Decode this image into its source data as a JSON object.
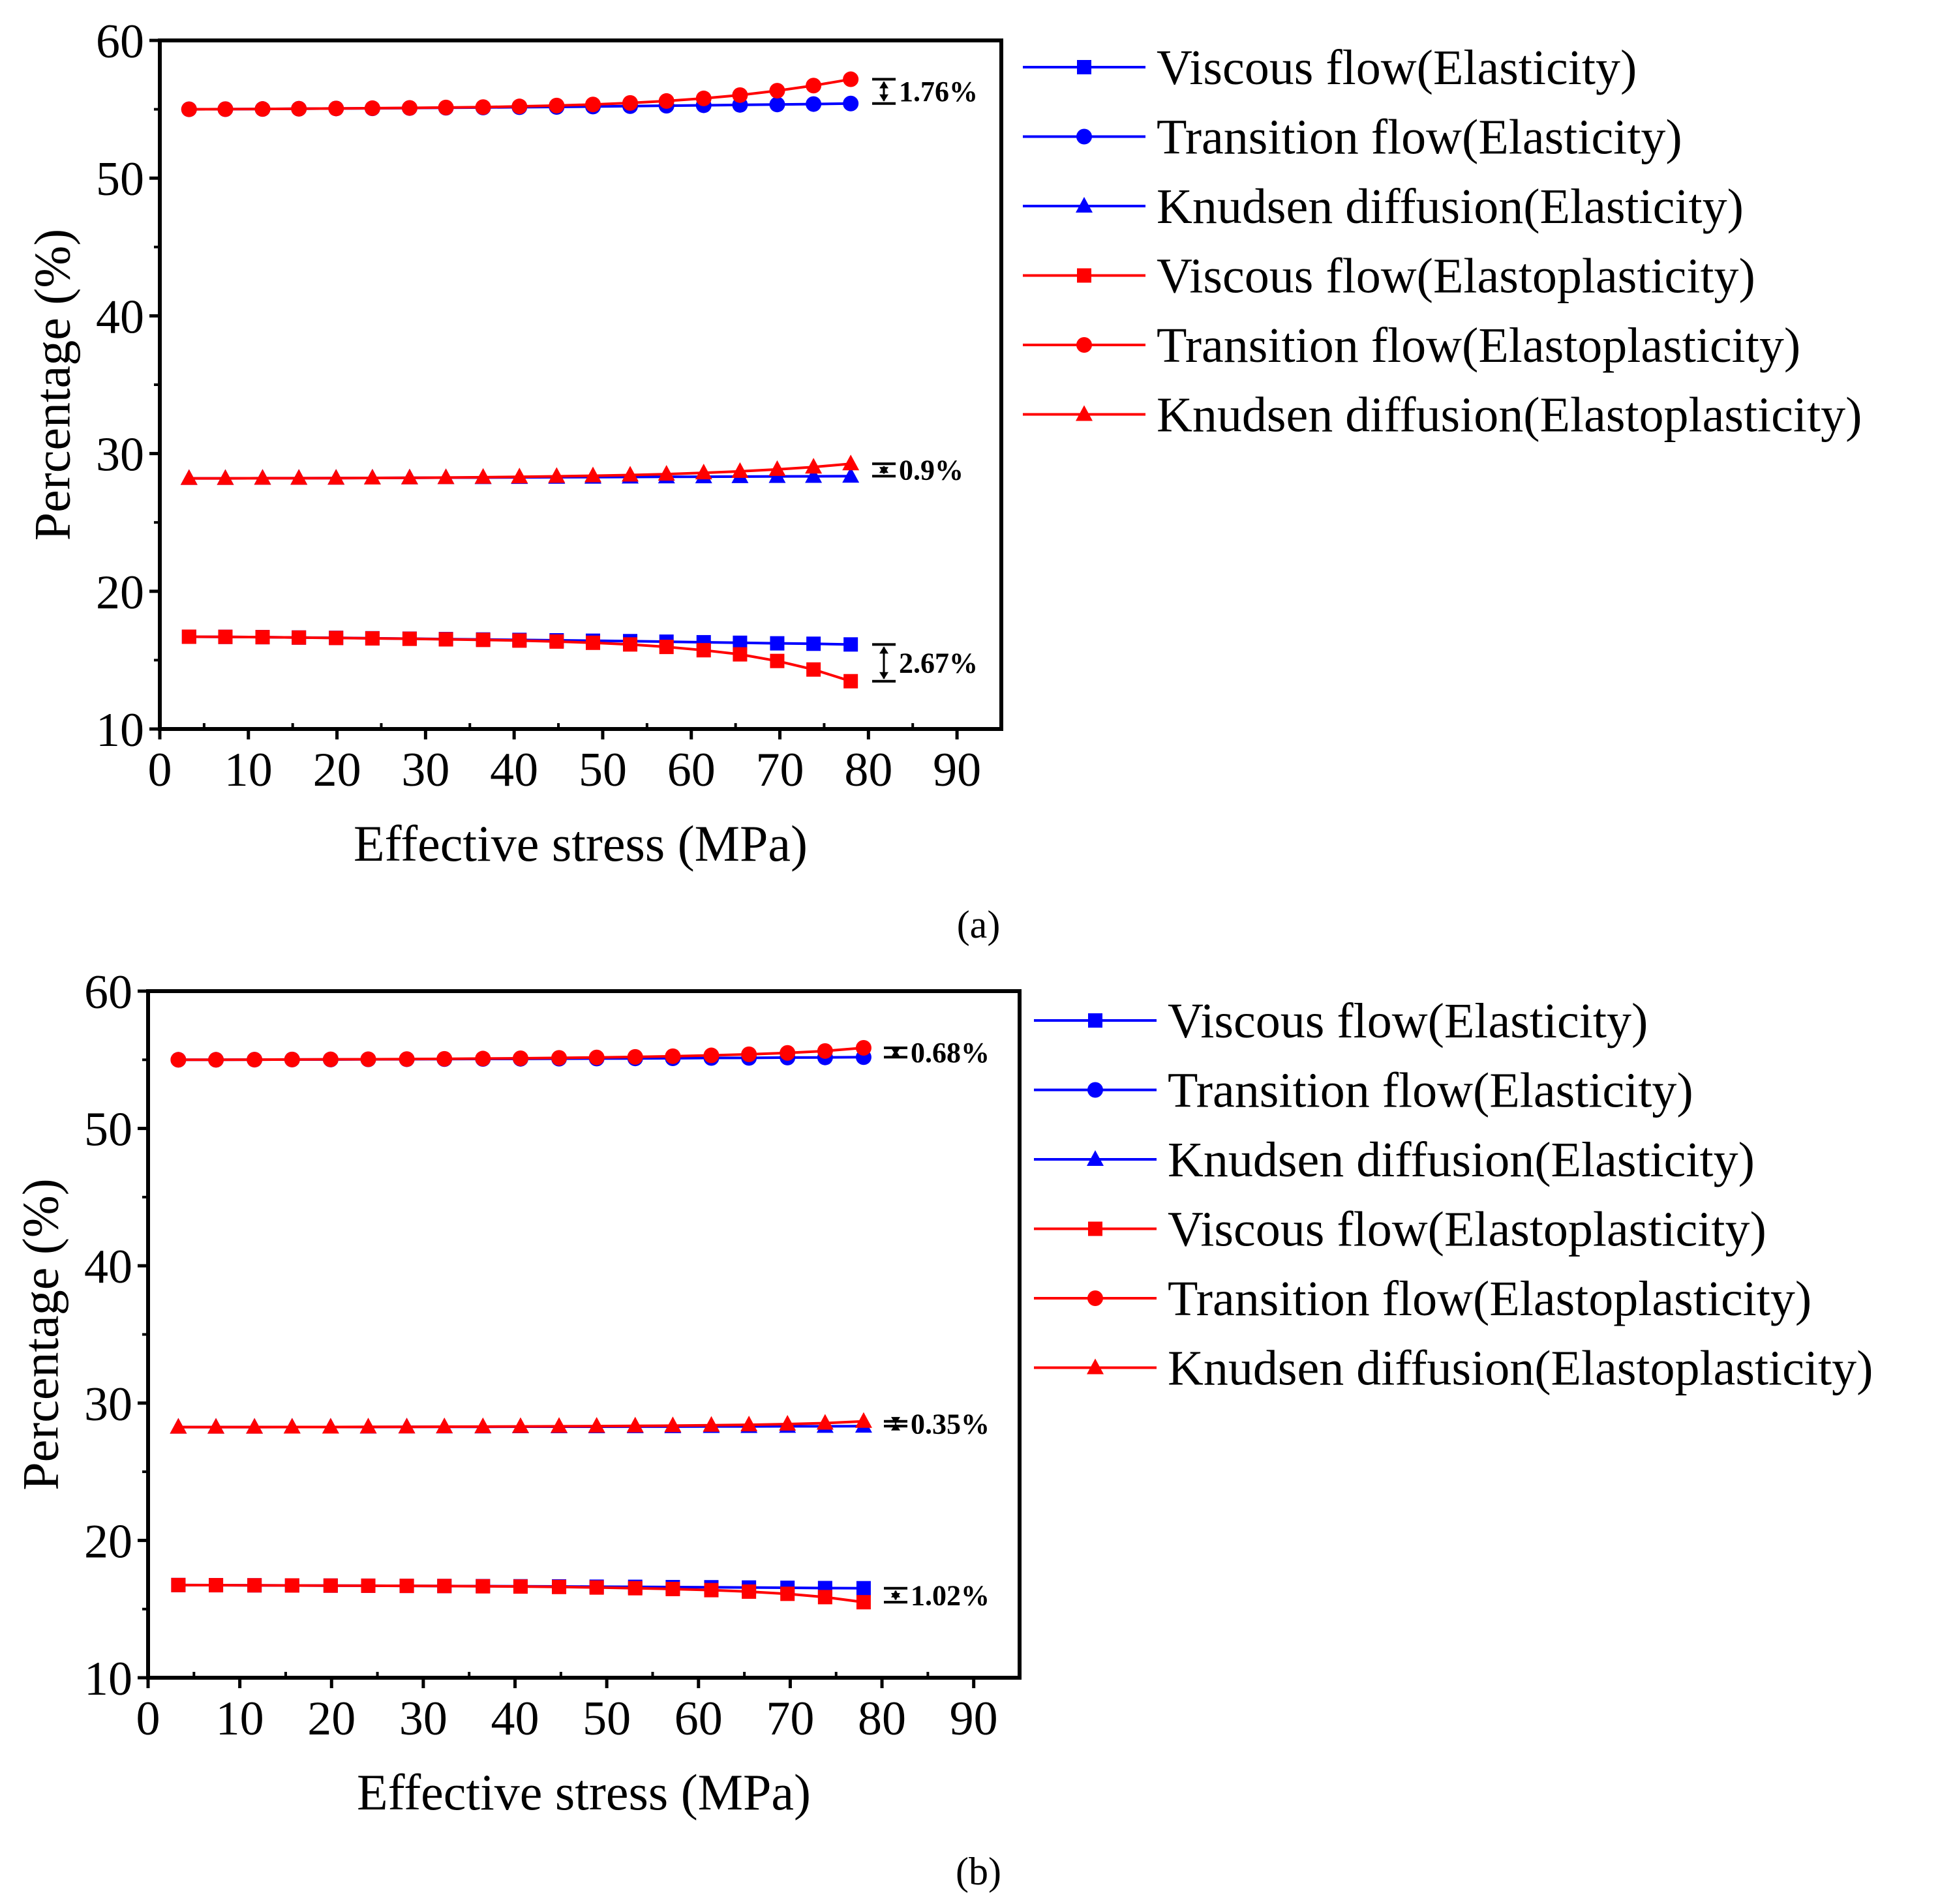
{
  "figure": {
    "panel_labels": [
      "(a)",
      "(b)"
    ]
  },
  "colors": {
    "elasticity": "#0000ff",
    "elastoplasticity": "#ff0000",
    "axis": "#000000"
  },
  "chart_data": [
    {
      "type": "line",
      "panel": "(a)",
      "xlabel": "Effective stress (MPa)",
      "ylabel": "Percentage (%)",
      "xlim": [
        0,
        95
      ],
      "ylim": [
        10,
        60
      ],
      "xticks": [
        0,
        10,
        20,
        30,
        40,
        50,
        60,
        70,
        80,
        90
      ],
      "yticks": [
        10,
        20,
        30,
        40,
        50,
        60
      ],
      "x": [
        3.3,
        7.4,
        11.6,
        15.7,
        19.9,
        24.0,
        28.2,
        32.3,
        36.5,
        40.6,
        44.8,
        48.9,
        53.1,
        57.2,
        61.4,
        65.5,
        69.7,
        73.8,
        78.0
      ],
      "legend_position": "right",
      "series": [
        {
          "name": "Viscous flow(Elasticity)",
          "color": "#0000ff",
          "marker": "square",
          "values": [
            16.7,
            16.69,
            16.67,
            16.64,
            16.62,
            16.59,
            16.56,
            16.53,
            16.5,
            16.47,
            16.44,
            16.41,
            16.38,
            16.34,
            16.3,
            16.26,
            16.22,
            16.19,
            16.14
          ]
        },
        {
          "name": "Transition flow(Elasticity)",
          "color": "#0000ff",
          "marker": "circle",
          "values": [
            55.0,
            55.01,
            55.02,
            55.04,
            55.06,
            55.07,
            55.09,
            55.11,
            55.13,
            55.15,
            55.17,
            55.2,
            55.23,
            55.26,
            55.29,
            55.32,
            55.35,
            55.38,
            55.42
          ]
        },
        {
          "name": "Knudsen diffusion(Elasticity)",
          "color": "#0000ff",
          "marker": "triangle",
          "values": [
            28.2,
            28.2,
            28.21,
            28.21,
            28.22,
            28.23,
            28.24,
            28.25,
            28.26,
            28.27,
            28.28,
            28.29,
            28.3,
            28.31,
            28.32,
            28.33,
            28.34,
            28.35,
            28.36
          ]
        },
        {
          "name": "Viscous flow(Elastoplasticity)",
          "color": "#ff0000",
          "marker": "square",
          "values": [
            16.7,
            16.69,
            16.67,
            16.64,
            16.61,
            16.58,
            16.55,
            16.51,
            16.47,
            16.42,
            16.35,
            16.26,
            16.14,
            15.96,
            15.72,
            15.42,
            14.94,
            14.32,
            13.47
          ]
        },
        {
          "name": "Transition flow(Elastoplasticity)",
          "color": "#ff0000",
          "marker": "circle",
          "values": [
            55.0,
            55.01,
            55.02,
            55.04,
            55.06,
            55.08,
            55.1,
            55.13,
            55.16,
            55.21,
            55.27,
            55.35,
            55.46,
            55.6,
            55.79,
            56.03,
            56.35,
            56.72,
            57.18
          ]
        },
        {
          "name": "Knudsen diffusion(Elastoplasticity)",
          "color": "#ff0000",
          "marker": "triangle",
          "values": [
            28.2,
            28.2,
            28.21,
            28.21,
            28.22,
            28.23,
            28.24,
            28.26,
            28.28,
            28.31,
            28.35,
            28.39,
            28.44,
            28.51,
            28.6,
            28.71,
            28.85,
            29.02,
            29.26
          ]
        }
      ],
      "annotations": [
        {
          "label": "1.76%",
          "y_low": 55.42,
          "y_high": 57.18
        },
        {
          "label": "0.9%",
          "y_low": 28.36,
          "y_high": 29.26
        },
        {
          "label": "2.67%",
          "y_low": 13.47,
          "y_high": 16.14
        }
      ]
    },
    {
      "type": "line",
      "panel": "(b)",
      "xlabel": "Effective stress (MPa)",
      "ylabel": "Percentage (%)",
      "xlim": [
        0,
        95
      ],
      "ylim": [
        10,
        60
      ],
      "xticks": [
        0,
        10,
        20,
        30,
        40,
        50,
        60,
        70,
        80,
        90
      ],
      "yticks": [
        10,
        20,
        30,
        40,
        50,
        60
      ],
      "x": [
        3.3,
        7.4,
        11.6,
        15.7,
        19.9,
        24.0,
        28.2,
        32.3,
        36.5,
        40.6,
        44.8,
        48.9,
        53.1,
        57.2,
        61.4,
        65.5,
        69.7,
        73.8,
        78.0
      ],
      "legend_position": "right",
      "series": [
        {
          "name": "Viscous flow(Elasticity)",
          "color": "#0000ff",
          "marker": "square",
          "values": [
            16.75,
            16.74,
            16.73,
            16.72,
            16.71,
            16.7,
            16.69,
            16.68,
            16.67,
            16.66,
            16.65,
            16.63,
            16.62,
            16.6,
            16.59,
            16.57,
            16.55,
            16.53,
            16.52
          ]
        },
        {
          "name": "Transition flow(Elasticity)",
          "color": "#0000ff",
          "marker": "circle",
          "values": [
            55.0,
            55.0,
            55.01,
            55.02,
            55.02,
            55.03,
            55.04,
            55.05,
            55.06,
            55.07,
            55.08,
            55.09,
            55.1,
            55.11,
            55.13,
            55.14,
            55.16,
            55.17,
            55.19
          ]
        },
        {
          "name": "Knudsen diffusion(Elasticity)",
          "color": "#0000ff",
          "marker": "triangle",
          "values": [
            28.25,
            28.25,
            28.25,
            28.26,
            28.26,
            28.26,
            28.27,
            28.27,
            28.27,
            28.28,
            28.28,
            28.28,
            28.29,
            28.29,
            28.3,
            28.3,
            28.31,
            28.31,
            28.32
          ]
        },
        {
          "name": "Viscous flow(Elastoplasticity)",
          "color": "#ff0000",
          "marker": "square",
          "values": [
            16.75,
            16.74,
            16.73,
            16.72,
            16.71,
            16.7,
            16.69,
            16.68,
            16.66,
            16.64,
            16.61,
            16.57,
            16.52,
            16.46,
            16.38,
            16.27,
            16.11,
            15.87,
            15.5
          ]
        },
        {
          "name": "Transition flow(Elastoplasticity)",
          "color": "#ff0000",
          "marker": "circle",
          "values": [
            55.0,
            55.0,
            55.01,
            55.02,
            55.03,
            55.04,
            55.05,
            55.07,
            55.09,
            55.11,
            55.14,
            55.17,
            55.21,
            55.26,
            55.32,
            55.4,
            55.5,
            55.64,
            55.87
          ]
        },
        {
          "name": "Knudsen diffusion(Elastoplasticity)",
          "color": "#ff0000",
          "marker": "triangle",
          "values": [
            28.25,
            28.25,
            28.25,
            28.26,
            28.26,
            28.27,
            28.27,
            28.28,
            28.29,
            28.3,
            28.31,
            28.32,
            28.34,
            28.36,
            28.39,
            28.42,
            28.47,
            28.54,
            28.67
          ]
        }
      ],
      "annotations": [
        {
          "label": "0.68%",
          "y_low": 55.19,
          "y_high": 55.87
        },
        {
          "label": "0.35%",
          "y_low": 28.32,
          "y_high": 28.67
        },
        {
          "label": "1.02%",
          "y_low": 15.5,
          "y_high": 16.52
        }
      ]
    }
  ]
}
